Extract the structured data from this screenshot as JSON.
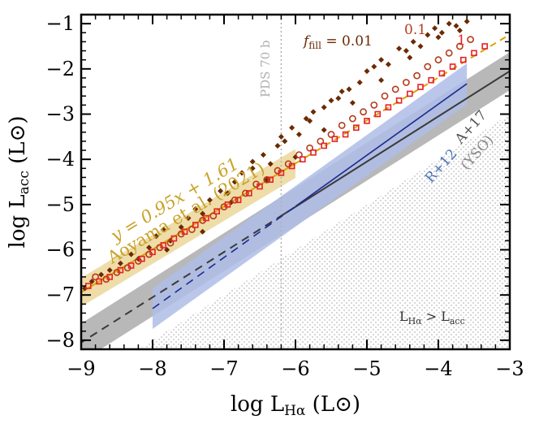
{
  "chart_data": {
    "type": "scatter",
    "xlabel": "log L_Hα (L⊙)",
    "ylabel": "log L_acc (L⊙)",
    "xlabel_parts": {
      "pre": "log L",
      "sub": "Hα",
      "post": " (L",
      "sun": "⊙",
      "close": ")"
    },
    "ylabel_parts": {
      "pre": "log L",
      "sub": "acc",
      "post": " (L",
      "sun": "⊙",
      "close": ")"
    },
    "xlim": [
      -9,
      -3
    ],
    "ylim": [
      -8.2,
      -0.8
    ],
    "xticks": [
      -9,
      -8,
      -7,
      -6,
      -5,
      -4,
      -3
    ],
    "yticks": [
      -8,
      -7,
      -6,
      -5,
      -4,
      -3,
      -2,
      -1
    ],
    "xtick_labels": [
      "−9",
      "−8",
      "−7",
      "−6",
      "−5",
      "−4",
      "−3"
    ],
    "ytick_labels": [
      "−8",
      "−7",
      "−6",
      "−5",
      "−4",
      "−3",
      "−2",
      "−1"
    ],
    "grid": false,
    "annotations": {
      "pds70b": "PDS 70 b",
      "pds70b_x": -6.2,
      "fit_equation": "y = 0.95x + 1.61",
      "fit_reference": "Aoyama et al. (2021)",
      "ffill_label_main": "f",
      "ffill_label_sub": "fill",
      "ffill_label_value": " = 0.01",
      "ffill_01": "0.1",
      "ffill_1": "1",
      "r12": "R+12",
      "a17": "A+17",
      "yso": "(YSO)",
      "region_label_main_a": "L",
      "region_label_sub_a": "Hα",
      "region_label_gt": " > L",
      "region_label_sub_b": "acc"
    },
    "colors": {
      "ffill_001": "#6b2a00",
      "ffill_01": "#b53a1c",
      "ffill_1": "#e8202a",
      "fit_band": "#ecd9a0",
      "fit_text": "#c9a227",
      "fit_line": "#d9a400",
      "yso_band": "#b4b4b4",
      "yso_line": "#3a3a3a",
      "r12_band": "#aebde6",
      "r12_line": "#1e2a8f",
      "r12_text": "#4a73b8",
      "a17_text": "#555555",
      "pds_line": "#b0b0b0",
      "region_hatch": "#999999"
    },
    "lines": {
      "aoyama_fit": {
        "slope": 0.95,
        "intercept": 1.61,
        "x_range": [
          -9,
          -6
        ]
      },
      "aoyama_dashed": {
        "slope": 0.95,
        "intercept": 1.61,
        "x_range": [
          -6,
          -3
        ]
      },
      "yso_relation": {
        "slope": 1.0,
        "intercept": 0.95,
        "solid_from": -6.2
      },
      "r12_relation": {
        "slope": 1.13,
        "intercept": 1.74,
        "solid_from": -6.0
      }
    },
    "series": [
      {
        "name": "0.01",
        "marker": "filled-diamond",
        "x": [
          -8.95,
          -8.85,
          -8.72,
          -8.6,
          -8.45,
          -8.3,
          -8.2,
          -8.05,
          -7.95,
          -7.85,
          -7.75,
          -7.6,
          -7.5,
          -7.4,
          -7.3,
          -7.2,
          -7.05,
          -6.95,
          -6.85,
          -6.75,
          -6.6,
          -6.45,
          -6.35,
          -6.25,
          -6.15,
          -6.05,
          -5.95,
          -5.85,
          -5.75,
          -5.6,
          -5.5,
          -5.35,
          -5.25,
          -5.1,
          -5.0,
          -4.9,
          -4.8,
          -4.7,
          -4.55,
          -4.45,
          -4.35,
          -4.25,
          -4.15,
          -4.05,
          -3.95,
          -3.85,
          -3.75,
          -3.6,
          -7.8,
          -7.3,
          -6.9,
          -6.4,
          -6.0,
          -5.6,
          -5.2,
          -4.8,
          -4.4,
          -4.0,
          -3.7,
          -6.6,
          -6.2,
          -5.8,
          -5.4
        ],
        "y": [
          -6.85,
          -6.7,
          -6.55,
          -6.45,
          -6.3,
          -6.1,
          -6.2,
          -5.95,
          -5.7,
          -5.55,
          -5.8,
          -5.5,
          -5.3,
          -5.1,
          -5.2,
          -4.9,
          -4.7,
          -4.75,
          -4.5,
          -4.3,
          -4.2,
          -3.9,
          -4.1,
          -3.7,
          -3.6,
          -3.3,
          -3.45,
          -3.1,
          -2.95,
          -2.85,
          -2.7,
          -2.5,
          -2.45,
          -2.3,
          -2.05,
          -1.95,
          -1.8,
          -1.9,
          -1.55,
          -1.6,
          -1.4,
          -1.5,
          -1.25,
          -1.1,
          -1.2,
          -1.0,
          -1.05,
          -0.95,
          -6.0,
          -5.6,
          -4.95,
          -4.45,
          -3.95,
          -3.35,
          -2.75,
          -2.25,
          -1.75,
          -1.3,
          -1.15,
          -4.05,
          -3.5,
          -3.15,
          -2.65
        ]
      },
      {
        "name": "0.1",
        "marker": "open-circle",
        "x": [
          -8.8,
          -8.65,
          -8.5,
          -8.35,
          -8.2,
          -8.05,
          -7.9,
          -7.75,
          -7.6,
          -7.45,
          -7.3,
          -7.15,
          -7.0,
          -6.85,
          -6.7,
          -6.55,
          -6.4,
          -6.25,
          -6.1,
          -5.95,
          -5.8,
          -5.65,
          -5.5,
          -5.35,
          -5.2,
          -5.05,
          -4.9,
          -4.75,
          -4.6,
          -4.45,
          -4.3,
          -4.15,
          -4.0,
          -3.85,
          -3.7,
          -3.55
        ],
        "y": [
          -6.6,
          -6.65,
          -6.5,
          -6.4,
          -6.25,
          -6.1,
          -5.95,
          -5.85,
          -5.65,
          -5.55,
          -5.35,
          -5.25,
          -5.05,
          -4.9,
          -4.75,
          -4.55,
          -4.45,
          -4.25,
          -4.1,
          -3.9,
          -3.75,
          -3.6,
          -3.45,
          -3.25,
          -3.1,
          -2.95,
          -2.8,
          -2.6,
          -2.45,
          -2.3,
          -2.15,
          -1.95,
          -1.8,
          -1.65,
          -1.5,
          -1.35
        ]
      },
      {
        "name": "1",
        "marker": "open-square",
        "x": [
          -8.9,
          -8.75,
          -8.6,
          -8.45,
          -8.3,
          -8.15,
          -8.0,
          -7.85,
          -7.7,
          -7.55,
          -7.4,
          -7.25,
          -7.1,
          -6.95,
          -6.8,
          -6.65,
          -6.5,
          -6.35,
          -6.2,
          -6.05,
          -5.9,
          -5.75,
          -5.6,
          -5.45,
          -5.3,
          -5.15,
          -5.0,
          -4.85,
          -4.7,
          -4.55,
          -4.4,
          -4.25,
          -4.1,
          -3.95,
          -3.8,
          -3.65,
          -3.5,
          -3.35
        ],
        "y": [
          -6.8,
          -6.7,
          -6.6,
          -6.45,
          -6.35,
          -6.2,
          -6.05,
          -5.9,
          -5.75,
          -5.6,
          -5.45,
          -5.3,
          -5.15,
          -5.0,
          -4.9,
          -4.75,
          -4.6,
          -4.45,
          -4.3,
          -4.15,
          -4.0,
          -3.85,
          -3.7,
          -3.55,
          -3.45,
          -3.3,
          -3.15,
          -3.0,
          -2.85,
          -2.7,
          -2.55,
          -2.4,
          -2.25,
          -2.1,
          -1.95,
          -1.8,
          -1.65,
          -1.5
        ]
      }
    ]
  }
}
